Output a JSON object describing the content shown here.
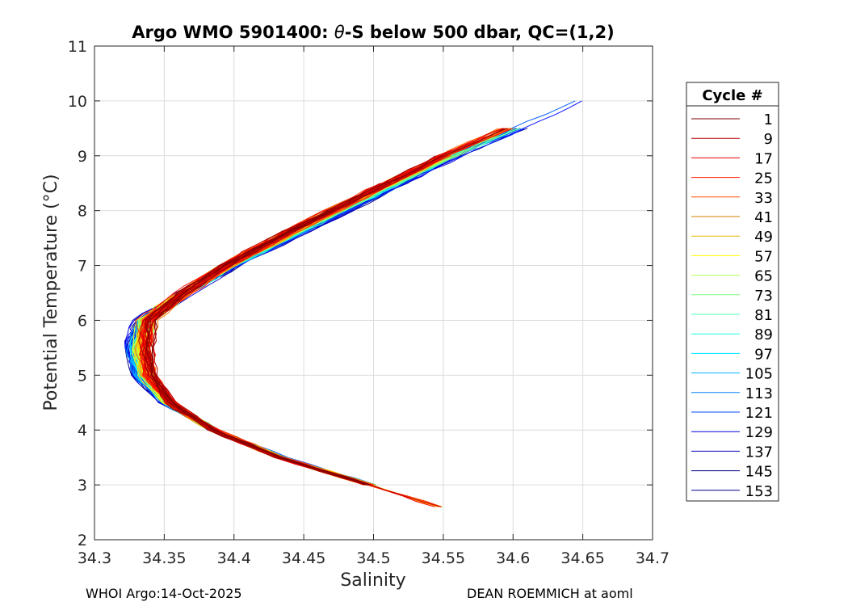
{
  "chart_data": {
    "type": "line",
    "title": "Argo WMO 5901400: θ-S below 500 dbar,  QC=(1,2)",
    "title_prefix": "Argo WMO 5901400: ",
    "title_theta": "θ",
    "title_suffix": "-S below 500 dbar,  QC=(1,2)",
    "xlabel": "Salinity",
    "ylabel": "Potential Temperature (°C)",
    "xlim": [
      34.3,
      34.7
    ],
    "ylim": [
      2,
      11
    ],
    "x_ticks": [
      "34.3",
      "34.35",
      "34.4",
      "34.45",
      "34.5",
      "34.55",
      "34.6",
      "34.65",
      "34.7"
    ],
    "y_ticks": [
      "2",
      "3",
      "4",
      "5",
      "6",
      "7",
      "8",
      "9",
      "10",
      "11"
    ],
    "grid": true,
    "legend": {
      "title": "Cycle #",
      "position": "right",
      "entries": [
        "1",
        "9",
        "17",
        "25",
        "33",
        "41",
        "49",
        "57",
        "65",
        "73",
        "81",
        "89",
        "97",
        "105",
        "113",
        "121",
        "129",
        "137",
        "145",
        "153"
      ],
      "colors": [
        "#7f0000",
        "#b20000",
        "#e60000",
        "#ff1a00",
        "#ff4d00",
        "#cc8000",
        "#e6b800",
        "#ffff00",
        "#b3ff4d",
        "#80ff80",
        "#4dffb3",
        "#1affe6",
        "#00e6ff",
        "#00b3ff",
        "#0080ff",
        "#004dff",
        "#0000e6",
        "#0000b3",
        "#000080",
        "#00008f"
      ]
    },
    "cycles_count": 153,
    "typical_profile": {
      "theta": [
        2.6,
        3.0,
        3.5,
        4.0,
        4.5,
        5.0,
        5.5,
        6.0,
        6.5,
        7.0,
        7.5,
        8.0,
        8.5,
        9.0,
        9.5,
        10.0
      ],
      "salinity": [
        34.55,
        34.5,
        34.435,
        34.385,
        34.35,
        34.33,
        34.325,
        34.335,
        34.365,
        34.4,
        34.44,
        34.48,
        34.52,
        34.56,
        34.605,
        34.65
      ]
    },
    "footer_left": "WHOI Argo:14-Oct-2025",
    "footer_right": "DEAN ROEMMICH at aoml"
  }
}
